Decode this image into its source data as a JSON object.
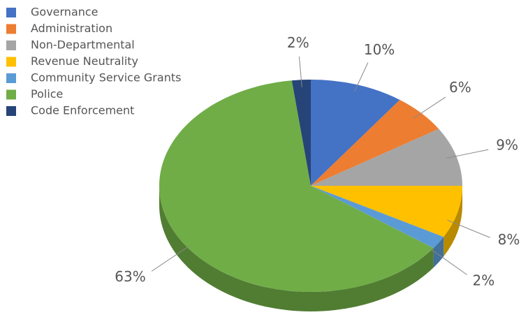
{
  "chart_data": {
    "type": "pie",
    "categories": [
      "Governance",
      "Administration",
      "Non-Departmental",
      "Revenue Neutrality",
      "Community Service Grants",
      "Police",
      "Code Enforcement"
    ],
    "values": [
      10,
      6,
      9,
      8,
      2,
      63,
      2
    ],
    "value_labels": [
      "10%",
      "6%",
      "9%",
      "8%",
      "2%",
      "63%",
      "2%"
    ],
    "colors": [
      "#4472c4",
      "#ed7d31",
      "#a5a5a5",
      "#ffc000",
      "#5b9bd5",
      "#70ad47",
      "#264478"
    ],
    "legend": "top-left"
  }
}
